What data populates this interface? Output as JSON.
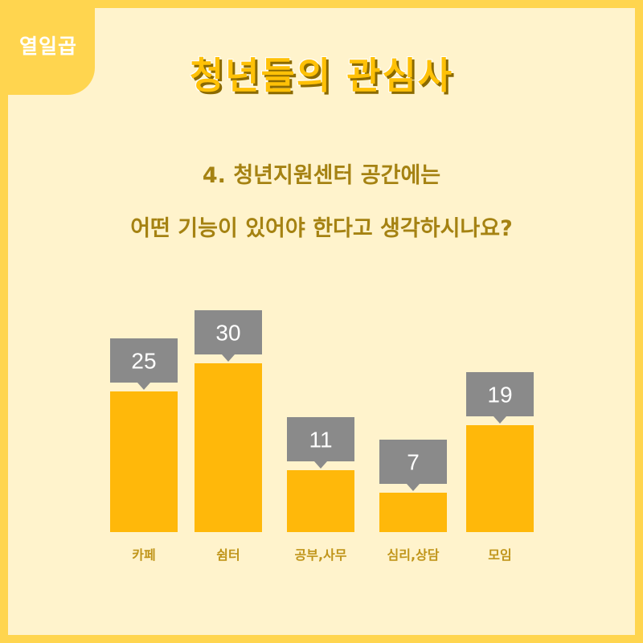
{
  "badge": {
    "label": "열일곱"
  },
  "title": "청년들의 관심사",
  "question": {
    "line1": "4. 청년지원센터 공간에는",
    "line2": "어떤 기능이 있어야 한다고 생각하시나요?"
  },
  "colors": {
    "border": "#FFD54F",
    "background": "#FFF3CC",
    "bar": "#FFB80A",
    "callout": "#8A8A8A",
    "title": "#FFC107",
    "text": "#A58212",
    "category_text": "#C0951A"
  },
  "chart_data": {
    "type": "bar",
    "categories": [
      "카페",
      "쉼터",
      "공부,사무",
      "심리,상담",
      "모임"
    ],
    "values": [
      25,
      30,
      11,
      7,
      19
    ],
    "title": "",
    "xlabel": "",
    "ylabel": "",
    "ylim": [
      0,
      30
    ],
    "grid": false,
    "data_labels": "callout-above-bar"
  }
}
